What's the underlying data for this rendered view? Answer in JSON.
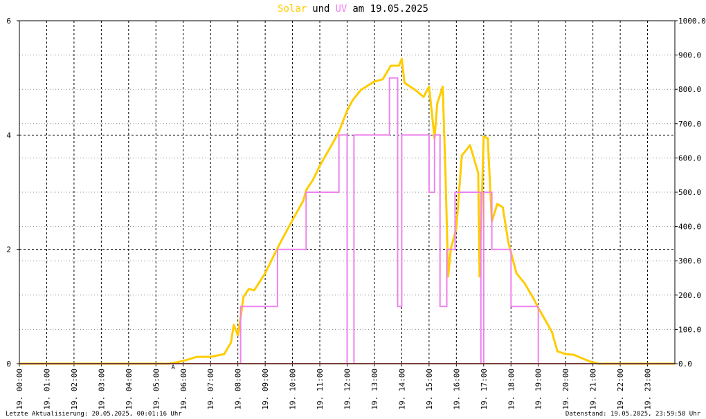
{
  "chart_data": {
    "type": "line",
    "title_segments": [
      {
        "text": "Solar",
        "color": "#ffcc00"
      },
      {
        "text": "und",
        "color": "#000000"
      },
      {
        "text": "UV",
        "color": "#ee82ee"
      },
      {
        "text": "am 19.05.2025",
        "color": "#000000"
      }
    ],
    "xlim": [
      0,
      24
    ],
    "xticks": [
      {
        "value": 0,
        "label": "19. 00:00"
      },
      {
        "value": 1,
        "label": "19. 01:00"
      },
      {
        "value": 2,
        "label": "19. 02:00"
      },
      {
        "value": 3,
        "label": "19. 03:00"
      },
      {
        "value": 4,
        "label": "19. 04:00"
      },
      {
        "value": 5,
        "label": "19. 05:00"
      },
      {
        "value": 6,
        "label": "19. 06:00"
      },
      {
        "value": 7,
        "label": "19. 07:00"
      },
      {
        "value": 8,
        "label": "19. 08:00"
      },
      {
        "value": 9,
        "label": "19. 09:00"
      },
      {
        "value": 10,
        "label": "19. 10:00"
      },
      {
        "value": 11,
        "label": "19. 11:00"
      },
      {
        "value": 12,
        "label": "19. 12:00"
      },
      {
        "value": 13,
        "label": "19. 13:00"
      },
      {
        "value": 14,
        "label": "19. 14:00"
      },
      {
        "value": 15,
        "label": "19. 15:00"
      },
      {
        "value": 16,
        "label": "19. 16:00"
      },
      {
        "value": 17,
        "label": "19. 17:00"
      },
      {
        "value": 18,
        "label": "19. 18:00"
      },
      {
        "value": 19,
        "label": "19. 19:00"
      },
      {
        "value": 20,
        "label": "19. 20:00"
      },
      {
        "value": 21,
        "label": "19. 21:00"
      },
      {
        "value": 22,
        "label": "19. 22:00"
      },
      {
        "value": 23,
        "label": "19. 23:00"
      }
    ],
    "ylim": [
      0,
      6
    ],
    "yticks": [
      0,
      2,
      4,
      6
    ],
    "y2lim": [
      0,
      1000
    ],
    "y2ticks": [
      {
        "value": 0,
        "label": "0.0"
      },
      {
        "value": 100,
        "label": "100.0"
      },
      {
        "value": 200,
        "label": "200.0"
      },
      {
        "value": 300,
        "label": "300.0"
      },
      {
        "value": 400,
        "label": "400.0"
      },
      {
        "value": 500,
        "label": "500.0"
      },
      {
        "value": 600,
        "label": "600.0"
      },
      {
        "value": 700,
        "label": "700.0"
      },
      {
        "value": 800,
        "label": "800.0"
      },
      {
        "value": 900,
        "label": "900.0"
      },
      {
        "value": 1000,
        "label": "1000.0"
      }
    ],
    "grid": true,
    "series": [
      {
        "name": "Solar",
        "color": "#ffcc00",
        "axis": "y2",
        "x": [
          0,
          5.3,
          5.5,
          6.0,
          6.5,
          7.0,
          7.5,
          7.75,
          7.85,
          8.0,
          8.1,
          8.2,
          8.4,
          8.6,
          9.0,
          9.5,
          10.0,
          10.4,
          10.5,
          10.75,
          11.0,
          11.5,
          11.7,
          12.0,
          12.2,
          12.5,
          13.0,
          13.3,
          13.6,
          13.9,
          14.0,
          14.1,
          14.5,
          14.8,
          15.0,
          15.2,
          15.3,
          15.5,
          15.6,
          15.7,
          15.8,
          16.0,
          16.2,
          16.5,
          16.8,
          16.85,
          17.0,
          17.15,
          17.3,
          17.5,
          17.7,
          17.9,
          18.2,
          18.5,
          18.8,
          19.0,
          19.5,
          19.7,
          20.0,
          20.3,
          20.6,
          20.9,
          21.2,
          24
        ],
        "values": [
          0,
          0,
          0,
          8,
          20,
          20,
          28,
          62,
          113,
          83,
          133,
          194,
          218,
          214,
          264,
          345,
          419,
          476,
          506,
          536,
          577,
          647,
          677,
          738,
          768,
          798,
          823,
          829,
          869,
          869,
          889,
          819,
          798,
          778,
          808,
          657,
          758,
          808,
          556,
          254,
          335,
          395,
          607,
          637,
          556,
          254,
          663,
          657,
          415,
          466,
          456,
          355,
          264,
          234,
          194,
          163,
          93,
          36,
          28,
          26,
          16,
          6,
          0,
          0
        ]
      },
      {
        "name": "UV",
        "color": "#ee82ee",
        "x": [
          0,
          8.1,
          8.1,
          9.45,
          9.45,
          10.5,
          10.5,
          11.7,
          11.7,
          12.0,
          12.0,
          12.25,
          12.25,
          13.55,
          13.55,
          13.85,
          13.85,
          14.0,
          14.0,
          15.0,
          15.0,
          15.2,
          15.2,
          15.4,
          15.4,
          15.65,
          15.65,
          15.95,
          15.95,
          16.9,
          16.9,
          17.0,
          17.0,
          17.3,
          17.3,
          18.0,
          18.0,
          19.0,
          19.0,
          24
        ],
        "values": [
          0,
          0,
          1,
          1,
          2,
          2,
          3,
          3,
          4,
          4,
          0,
          0,
          4,
          4,
          5,
          5,
          1,
          1,
          4,
          4,
          3,
          3,
          4,
          4,
          1,
          1,
          2,
          2,
          3,
          3,
          0,
          0,
          3,
          3,
          2,
          2,
          1,
          1,
          0,
          0
        ]
      }
    ],
    "annotations": [
      {
        "text": "A",
        "x": 5.63
      }
    ]
  },
  "footer": {
    "left": "Letzte Aktualisierung: 20.05.2025, 00:01:16 Uhr",
    "right": "Datenstand: 19.05.2025, 23:59:58 Uhr"
  }
}
